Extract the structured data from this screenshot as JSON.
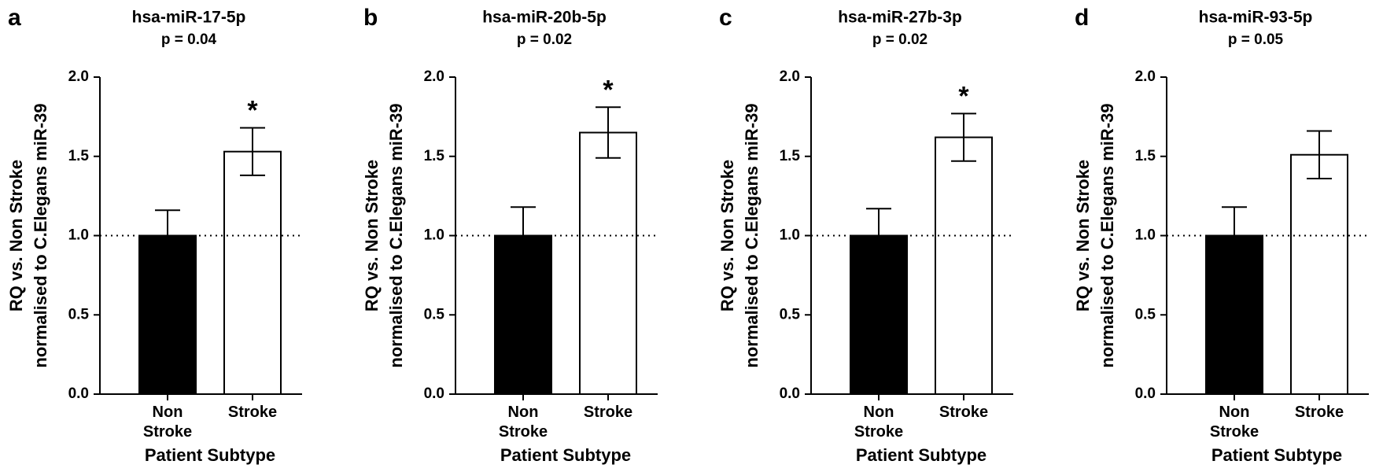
{
  "chart_data": [
    {
      "type": "bar",
      "panel_label": "a",
      "title": "hsa-miR-17-5p",
      "subtitle": "p = 0.04",
      "ylabel": [
        "RQ vs. Non Stroke",
        "normalised to C.Elegans miR-39"
      ],
      "xlabel": "Patient Subtype",
      "categories": [
        "Non Stroke",
        "Stroke"
      ],
      "values": [
        1.0,
        1.53
      ],
      "errors": [
        0.16,
        0.15
      ],
      "colors": [
        "#000000",
        "#ffffff"
      ],
      "reference_line": 1,
      "annotations": [
        {
          "text": "*",
          "category": "Stroke"
        }
      ],
      "ylim": [
        0,
        2
      ],
      "yticks": [
        {
          "value": 0,
          "label": "0.0"
        },
        {
          "value": 0.5,
          "label": "0.5"
        },
        {
          "value": 1,
          "label": "1.0"
        },
        {
          "value": 1.5,
          "label": "1.5"
        },
        {
          "value": 2,
          "label": "2.0"
        }
      ]
    },
    {
      "type": "bar",
      "panel_label": "b",
      "title": "hsa-miR-20b-5p",
      "subtitle": "p = 0.02",
      "ylabel": [
        "RQ vs. Non Stroke",
        "normalised to C.Elegans miR-39"
      ],
      "xlabel": "Patient Subtype",
      "categories": [
        "Non Stroke",
        "Stroke"
      ],
      "values": [
        1.0,
        1.65
      ],
      "errors": [
        0.18,
        0.16
      ],
      "colors": [
        "#000000",
        "#ffffff"
      ],
      "reference_line": 1,
      "annotations": [
        {
          "text": "*",
          "category": "Stroke"
        }
      ],
      "ylim": [
        0,
        2
      ],
      "yticks": [
        {
          "value": 0,
          "label": "0.0"
        },
        {
          "value": 0.5,
          "label": "0.5"
        },
        {
          "value": 1,
          "label": "1.0"
        },
        {
          "value": 1.5,
          "label": "1.5"
        },
        {
          "value": 2,
          "label": "2.0"
        }
      ]
    },
    {
      "type": "bar",
      "panel_label": "c",
      "title": "hsa-miR-27b-3p",
      "subtitle": "p = 0.02",
      "ylabel": [
        "RQ vs. Non Stroke",
        "normalised to C.Elegans miR-39"
      ],
      "xlabel": "Patient Subtype",
      "categories": [
        "Non Stroke",
        "Stroke"
      ],
      "values": [
        1.0,
        1.62
      ],
      "errors": [
        0.17,
        0.15
      ],
      "colors": [
        "#000000",
        "#ffffff"
      ],
      "reference_line": 1,
      "annotations": [
        {
          "text": "*",
          "category": "Stroke"
        }
      ],
      "ylim": [
        0,
        2
      ],
      "yticks": [
        {
          "value": 0,
          "label": "0.0"
        },
        {
          "value": 0.5,
          "label": "0.5"
        },
        {
          "value": 1,
          "label": "1.0"
        },
        {
          "value": 1.5,
          "label": "1.5"
        },
        {
          "value": 2,
          "label": "2.0"
        }
      ]
    },
    {
      "type": "bar",
      "panel_label": "d",
      "title": "hsa-miR-93-5p",
      "subtitle": "p = 0.05",
      "ylabel": [
        "RQ vs. Non Stroke",
        "normalised to C.Elegans miR-39"
      ],
      "xlabel": "Patient Subtype",
      "categories": [
        "Non Stroke",
        "Stroke"
      ],
      "values": [
        1.0,
        1.51
      ],
      "errors": [
        0.18,
        0.15
      ],
      "colors": [
        "#000000",
        "#ffffff"
      ],
      "reference_line": 1,
      "ylim": [
        0,
        2
      ],
      "yticks": [
        {
          "value": 0,
          "label": "0.0"
        },
        {
          "value": 0.5,
          "label": "0.5"
        },
        {
          "value": 1,
          "label": "1.0"
        },
        {
          "value": 1.5,
          "label": "1.5"
        },
        {
          "value": 2,
          "label": "2.0"
        }
      ]
    }
  ]
}
